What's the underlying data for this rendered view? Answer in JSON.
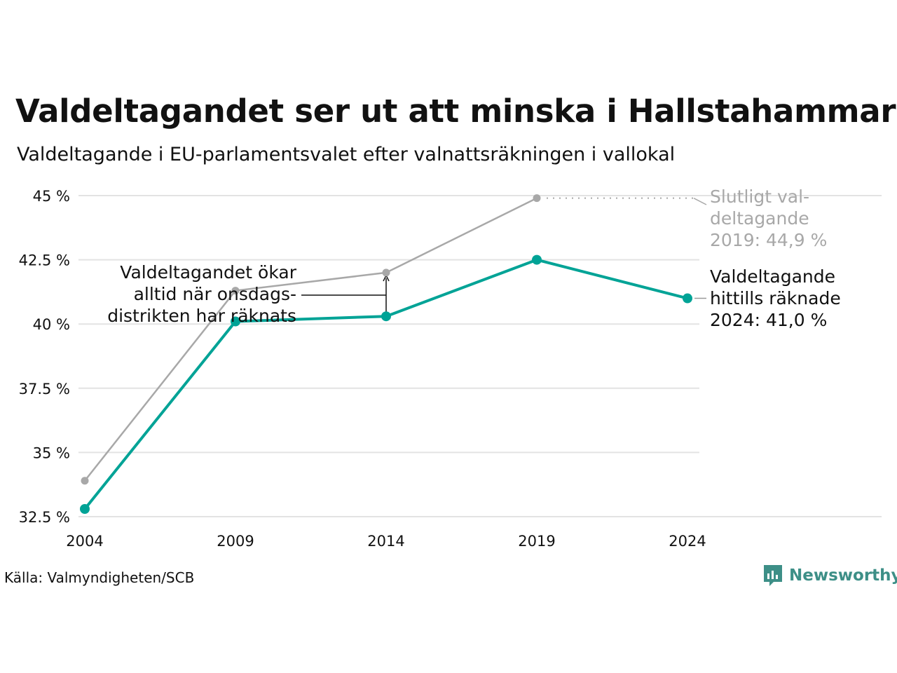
{
  "title": "Valdeltagandet ser ut att minska i Hallstahammar",
  "subtitle": "Valdeltagande i EU-parlamentsvalet efter valnattsräkningen i vallokal",
  "source": "Källa: Valmyndigheten/SCB",
  "logo": {
    "text": "Newsworthy",
    "icon": "newsworthy-logo-icon",
    "color": "#3d8f87"
  },
  "colors": {
    "valnatt": "#00a396",
    "slutligt": "#a8a8a8",
    "grid": "#e3e3e3"
  },
  "annotations": {
    "wednesday": [
      "Valdeltagandet ökar",
      "alltid när onsdags-",
      "distrikten har räknats"
    ],
    "final_2019": [
      "Slutligt val-",
      "deltagande",
      "2019: 44,9 %"
    ],
    "counted_2024": [
      "Valdeltagande",
      "hittills räknade",
      "2024: 41,0 %"
    ]
  },
  "chart_data": {
    "type": "line",
    "x": [
      2004,
      2009,
      2014,
      2019,
      2024
    ],
    "x_tick_labels": [
      "2004",
      "2009",
      "2014",
      "2019",
      "2024"
    ],
    "y_ticks": [
      32.5,
      35,
      37.5,
      40,
      42.5,
      45
    ],
    "y_tick_labels": [
      "32.5 %",
      "35 %",
      "37.5 %",
      "40 %",
      "42.5 %",
      "45 %"
    ],
    "ylim": [
      32.5,
      45
    ],
    "grid": true,
    "series": [
      {
        "key": "slutligt",
        "values": [
          33.9,
          41.3,
          42.0,
          44.9,
          null
        ]
      },
      {
        "key": "valnatt",
        "values": [
          32.8,
          40.1,
          40.3,
          42.5,
          41.0
        ]
      }
    ]
  }
}
